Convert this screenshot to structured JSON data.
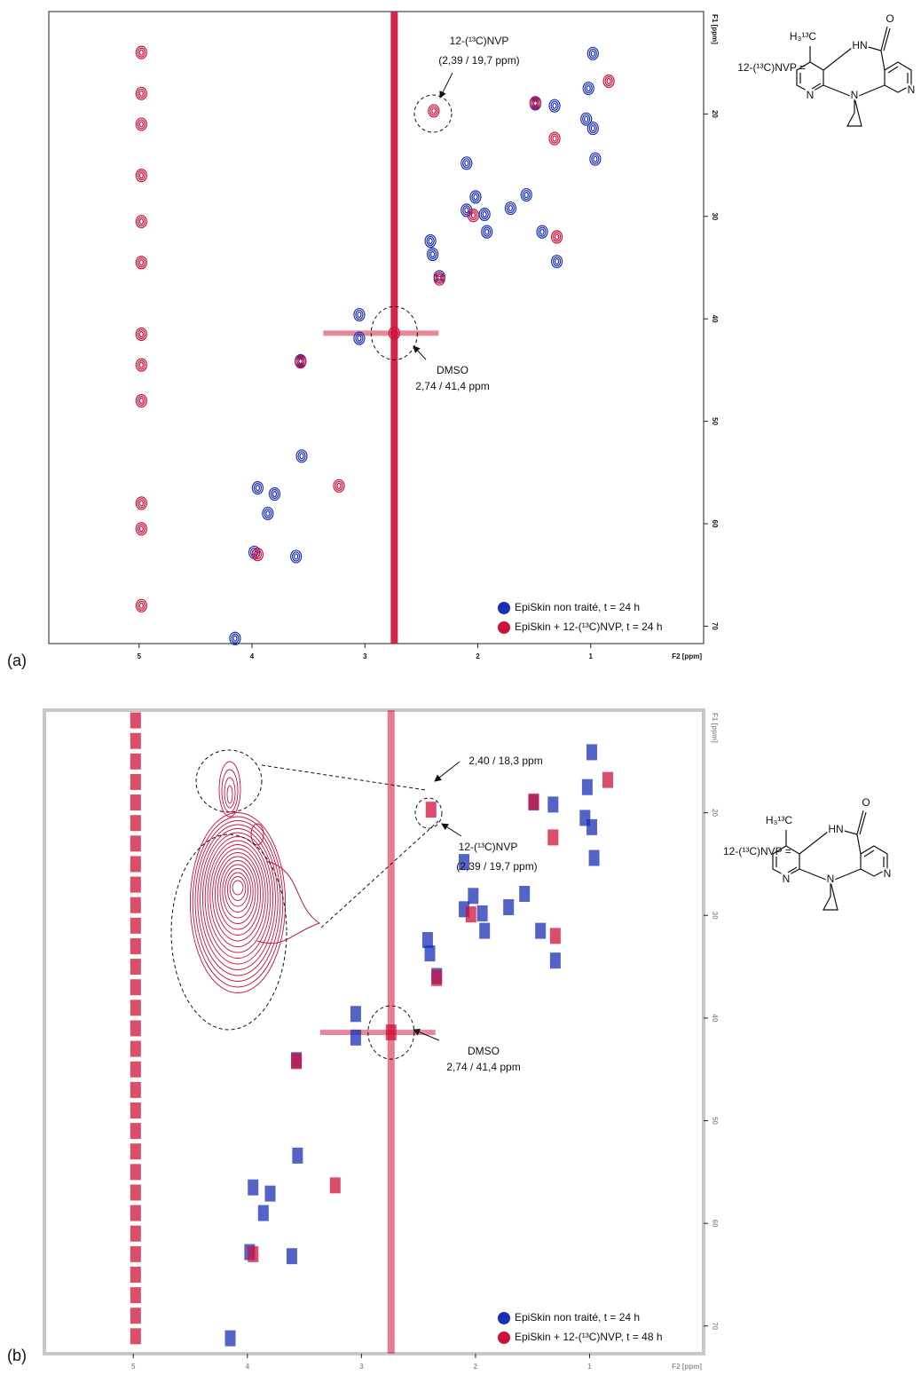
{
  "chart_data": [
    {
      "type": "contour",
      "panel": "(a)",
      "x_label": "F2 [ppm]",
      "y_label": "F1 [ppm]",
      "xlim": [
        5.8,
        0
      ],
      "ylim": [
        10,
        71.7
      ],
      "xticks": [
        5,
        4,
        3,
        2,
        1
      ],
      "yticks": [
        20,
        30,
        40,
        50,
        60,
        70
      ],
      "annotations": [
        "12-(¹³C)NVP",
        "(2,39 / 19,7 ppm)",
        "DMSO",
        "2,74 / 41,4 ppm"
      ],
      "structure": {
        "label": "12-(¹³C)NVP =",
        "atoms": [
          "H₃¹³C",
          "HN",
          "O",
          "N",
          "N",
          "N"
        ]
      },
      "legend": "lower right",
      "series": [
        {
          "name": "EpiSkin non traité, t = 24 h",
          "color": "#1a2fb5",
          "x": [
            0.98,
            1.02,
            1.04,
            0.98,
            0.96,
            1.49,
            1.32,
            2.1,
            2.02,
            2.1,
            1.94,
            1.71,
            1.57,
            1.92,
            1.43,
            2.42,
            2.4,
            2.34,
            1.3,
            3.05,
            3.05,
            3.57,
            3.56,
            3.95,
            3.8,
            3.86,
            3.98,
            3.61,
            4.15
          ],
          "values": [
            14.1,
            17.5,
            20.5,
            21.4,
            24.4,
            19.0,
            19.2,
            24.8,
            28.1,
            29.4,
            29.8,
            29.2,
            27.9,
            31.5,
            31.5,
            32.4,
            33.7,
            35.9,
            34.4,
            39.6,
            41.9,
            44.1,
            53.4,
            56.5,
            57.1,
            59.0,
            62.8,
            63.2,
            71.2
          ]
        },
        {
          "name": "EpiSkin + 12-(¹³C)NVP, t = 24 h",
          "color": "#d0103a",
          "x": [
            2.74,
            2.39,
            3.23,
            1.32,
            1.3,
            0.84,
            2.04,
            2.34,
            3.57,
            3.95,
            1.49,
            4.98,
            4.98,
            4.98,
            4.98,
            4.98,
            4.98,
            4.98,
            4.98,
            4.98,
            4.98,
            4.98,
            4.98
          ],
          "values": [
            41.4,
            19.7,
            56.3,
            22.4,
            32.0,
            16.8,
            29.9,
            36.1,
            44.2,
            63.0,
            18.9,
            14,
            18,
            21,
            26,
            30.5,
            34.5,
            41.5,
            44.5,
            48,
            58,
            60.5,
            68
          ]
        }
      ]
    },
    {
      "type": "raster",
      "panel": "(b)",
      "x_label": "F2 [ppm]",
      "y_label": "F1 [ppm]",
      "xlim": [
        5.78,
        0
      ],
      "ylim": [
        10,
        72.7
      ],
      "xticks": [
        5,
        4,
        3,
        2,
        1
      ],
      "yticks": [
        20,
        30,
        40,
        50,
        60,
        70
      ],
      "annotations": [
        "2,40 / 18,3 ppm",
        "12-(¹³C)NVP",
        "(2,39 / 19,7 ppm)",
        "DMSO",
        "2,74 / 41,4 ppm"
      ],
      "structure": {
        "label": "12-(¹³C)NVP =",
        "atoms": [
          "H₃¹³C",
          "HN",
          "O",
          "N",
          "N",
          "N"
        ]
      },
      "legend": "lower right",
      "series": [
        {
          "name": "EpiSkin non traité, t = 24 h",
          "color": "#1a2fb5",
          "x": [
            0.98,
            1.02,
            1.04,
            0.98,
            0.96,
            1.49,
            1.32,
            2.1,
            2.02,
            2.1,
            1.94,
            1.71,
            1.57,
            1.92,
            1.43,
            2.42,
            2.4,
            2.34,
            1.3,
            3.05,
            3.05,
            3.57,
            3.56,
            3.95,
            3.8,
            3.86,
            3.98,
            3.61,
            4.15
          ],
          "values": [
            14.1,
            17.5,
            20.5,
            21.4,
            24.4,
            19.0,
            19.2,
            24.8,
            28.1,
            29.4,
            29.8,
            29.2,
            27.9,
            31.5,
            31.5,
            32.4,
            33.7,
            35.9,
            34.4,
            39.6,
            41.9,
            44.1,
            53.4,
            56.5,
            57.1,
            59.0,
            62.8,
            63.2,
            71.2
          ]
        },
        {
          "name": "EpiSkin + 12-(¹³C)NVP, t = 48 h",
          "color": "#d0103a",
          "x": [
            2.74,
            2.39,
            3.23,
            1.32,
            1.3,
            0.84,
            2.04,
            2.34,
            3.57,
            3.95,
            1.49,
            4.98,
            4.98,
            4.98,
            4.98,
            4.98,
            4.98,
            4.98,
            4.98,
            4.98,
            4.98,
            4.98,
            4.98,
            4.98,
            4.98,
            4.98,
            4.98,
            4.98,
            4.98,
            4.98,
            4.98,
            4.98,
            4.98,
            4.98,
            4.98,
            4.98,
            4.98,
            4.98,
            4.98,
            4.98,
            4.98,
            4.98
          ],
          "values": [
            41.4,
            19.7,
            56.3,
            22.4,
            32.0,
            16.8,
            29.9,
            36.1,
            44.2,
            63.0,
            18.9,
            11,
            13,
            15,
            17,
            19,
            21,
            23,
            25,
            27,
            29,
            31,
            33,
            35,
            37,
            39,
            41,
            43,
            45,
            47,
            49,
            51,
            53,
            55,
            57,
            59,
            61,
            63,
            65,
            67,
            69,
            71
          ]
        }
      ]
    }
  ]
}
